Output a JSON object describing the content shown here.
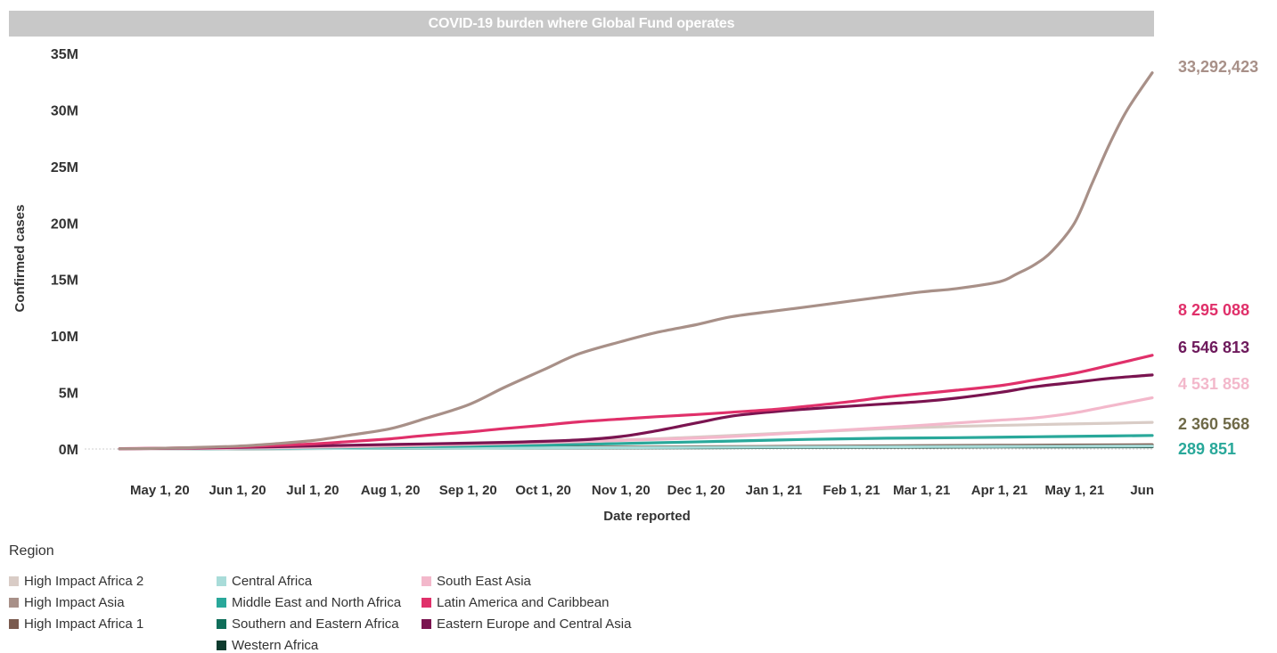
{
  "chart_data": {
    "type": "line",
    "title": "COVID-19 burden where Global Fund operates",
    "xlabel": "Date reported",
    "ylabel": "Confirmed cases",
    "x_range": [
      "2020-04-01",
      "2021-06-01"
    ],
    "ylim": [
      0,
      35000000
    ],
    "yticks": [
      {
        "value": 0,
        "label": "0M"
      },
      {
        "value": 5000000,
        "label": "5M"
      },
      {
        "value": 10000000,
        "label": "10M"
      },
      {
        "value": 15000000,
        "label": "15M"
      },
      {
        "value": 20000000,
        "label": "20M"
      },
      {
        "value": 25000000,
        "label": "25M"
      },
      {
        "value": 30000000,
        "label": "30M"
      },
      {
        "value": 35000000,
        "label": "35M"
      }
    ],
    "xticks": [
      {
        "date": "2020-05-01",
        "label": "May 1, 20"
      },
      {
        "date": "2020-06-01",
        "label": "Jun 1, 20"
      },
      {
        "date": "2020-07-01",
        "label": "Jul 1, 20"
      },
      {
        "date": "2020-08-01",
        "label": "Aug 1, 20"
      },
      {
        "date": "2020-09-01",
        "label": "Sep 1, 20"
      },
      {
        "date": "2020-10-01",
        "label": "Oct 1, 20"
      },
      {
        "date": "2020-11-01",
        "label": "Nov 1, 20"
      },
      {
        "date": "2020-12-01",
        "label": "Dec 1, 20"
      },
      {
        "date": "2021-01-01",
        "label": "Jan 1, 21"
      },
      {
        "date": "2021-02-01",
        "label": "Feb 1, 21"
      },
      {
        "date": "2021-03-01",
        "label": "Mar 1, 21"
      },
      {
        "date": "2021-04-01",
        "label": "Apr 1, 21"
      },
      {
        "date": "2021-05-01",
        "label": "May 1, 21"
      },
      {
        "date": "2021-06-01",
        "label": "Jun"
      }
    ],
    "grid": false,
    "legend_position": "bottom-left",
    "legend_title": "Region",
    "series": [
      {
        "name": "Western Africa",
        "color": "#0e3b2e",
        "dates": [
          "2020-04-15",
          "2020-06-01",
          "2020-08-01",
          "2020-10-01",
          "2020-12-01",
          "2021-02-01",
          "2021-04-01",
          "2021-06-01"
        ],
        "values": [
          5000,
          20000,
          60000,
          90000,
          110000,
          150000,
          180000,
          200000
        ]
      },
      {
        "name": "Southern and Eastern Africa",
        "color": "#0f6e5a",
        "dates": [
          "2020-04-15",
          "2020-06-01",
          "2020-08-01",
          "2020-10-01",
          "2020-12-01",
          "2021-02-01",
          "2021-04-01",
          "2021-06-01"
        ],
        "values": [
          5000,
          20000,
          70000,
          120000,
          160000,
          220000,
          260000,
          289851
        ]
      },
      {
        "name": "High Impact Africa 1",
        "color": "#7a5a4e",
        "dates": [
          "2020-04-15",
          "2020-06-01",
          "2020-08-01",
          "2020-10-01",
          "2020-12-01",
          "2021-02-01",
          "2021-04-01",
          "2021-06-01"
        ],
        "values": [
          5000,
          30000,
          100000,
          160000,
          200000,
          260000,
          320000,
          380000
        ]
      },
      {
        "name": "Central Africa",
        "color": "#a9dcd9",
        "dates": [
          "2020-04-15",
          "2020-06-01",
          "2020-08-01",
          "2020-10-01",
          "2020-12-01",
          "2021-02-01",
          "2021-04-01",
          "2021-06-01"
        ],
        "values": [
          5000,
          20000,
          60000,
          100000,
          140000,
          190000,
          230000,
          260000
        ]
      },
      {
        "name": "Middle East and North Africa",
        "color": "#29a89a",
        "dates": [
          "2020-04-15",
          "2020-05-15",
          "2020-06-15",
          "2020-07-15",
          "2020-08-15",
          "2020-09-15",
          "2020-10-15",
          "2020-11-15",
          "2020-12-15",
          "2021-01-15",
          "2021-02-15",
          "2021-03-15",
          "2021-04-15",
          "2021-05-15",
          "2021-06-01"
        ],
        "values": [
          10000,
          30000,
          80000,
          150000,
          220000,
          300000,
          400000,
          550000,
          700000,
          850000,
          950000,
          1000000,
          1080000,
          1150000,
          1200000
        ]
      },
      {
        "name": "High Impact Africa 2",
        "color": "#d9ccc6",
        "dates": [
          "2020-04-15",
          "2020-05-15",
          "2020-06-15",
          "2020-07-15",
          "2020-08-15",
          "2020-09-15",
          "2020-10-15",
          "2020-11-15",
          "2020-12-15",
          "2021-01-15",
          "2021-02-15",
          "2021-03-15",
          "2021-04-15",
          "2021-05-15",
          "2021-06-01"
        ],
        "values": [
          10000,
          40000,
          120000,
          250000,
          400000,
          550000,
          700000,
          900000,
          1200000,
          1500000,
          1800000,
          2000000,
          2150000,
          2280000,
          2360568
        ]
      },
      {
        "name": "South East Asia",
        "color": "#f3b8cb",
        "dates": [
          "2020-04-15",
          "2020-05-15",
          "2020-06-15",
          "2020-07-15",
          "2020-08-15",
          "2020-09-15",
          "2020-10-15",
          "2020-11-15",
          "2020-12-15",
          "2021-01-15",
          "2021-02-15",
          "2021-03-15",
          "2021-04-01",
          "2021-04-15",
          "2021-05-01",
          "2021-05-15",
          "2021-06-01"
        ],
        "values": [
          10000,
          40000,
          100000,
          200000,
          330000,
          480000,
          650000,
          850000,
          1100000,
          1500000,
          1900000,
          2300000,
          2550000,
          2750000,
          3200000,
          3800000,
          4531858
        ]
      },
      {
        "name": "Eastern Europe and Central Asia",
        "color": "#7a1450",
        "dates": [
          "2020-04-15",
          "2020-05-15",
          "2020-06-15",
          "2020-07-15",
          "2020-08-15",
          "2020-09-15",
          "2020-10-15",
          "2020-11-01",
          "2020-11-15",
          "2020-12-01",
          "2020-12-15",
          "2021-01-01",
          "2021-01-15",
          "2021-02-01",
          "2021-02-15",
          "2021-03-01",
          "2021-03-15",
          "2021-04-01",
          "2021-04-15",
          "2021-05-01",
          "2021-05-15",
          "2021-06-01"
        ],
        "values": [
          20000,
          80000,
          200000,
          330000,
          450000,
          580000,
          800000,
          1100000,
          1600000,
          2300000,
          2900000,
          3300000,
          3550000,
          3800000,
          4000000,
          4200000,
          4500000,
          5000000,
          5500000,
          5900000,
          6250000,
          6546813
        ]
      },
      {
        "name": "Latin America and Caribbean",
        "color": "#e0306a",
        "dates": [
          "2020-04-15",
          "2020-05-01",
          "2020-05-15",
          "2020-06-01",
          "2020-06-15",
          "2020-07-01",
          "2020-07-15",
          "2020-08-01",
          "2020-08-15",
          "2020-09-01",
          "2020-09-15",
          "2020-10-01",
          "2020-10-15",
          "2020-11-01",
          "2020-11-15",
          "2020-12-01",
          "2020-12-15",
          "2021-01-01",
          "2021-01-15",
          "2021-02-01",
          "2021-02-15",
          "2021-03-01",
          "2021-03-15",
          "2021-04-01",
          "2021-04-15",
          "2021-05-01",
          "2021-05-15",
          "2021-06-01"
        ],
        "values": [
          30000,
          60000,
          120000,
          200000,
          300000,
          450000,
          650000,
          900000,
          1200000,
          1500000,
          1800000,
          2100000,
          2400000,
          2650000,
          2850000,
          3050000,
          3250000,
          3500000,
          3800000,
          4200000,
          4600000,
          4900000,
          5200000,
          5600000,
          6100000,
          6700000,
          7400000,
          8295088
        ]
      },
      {
        "name": "High Impact Asia",
        "color": "#a89088",
        "dates": [
          "2020-04-15",
          "2020-05-01",
          "2020-05-15",
          "2020-06-01",
          "2020-06-15",
          "2020-07-01",
          "2020-07-15",
          "2020-08-01",
          "2020-08-15",
          "2020-09-01",
          "2020-09-15",
          "2020-10-01",
          "2020-10-15",
          "2020-11-01",
          "2020-11-15",
          "2020-12-01",
          "2020-12-15",
          "2021-01-01",
          "2021-01-15",
          "2021-02-01",
          "2021-02-15",
          "2021-03-01",
          "2021-03-15",
          "2021-04-01",
          "2021-04-08",
          "2021-04-15",
          "2021-04-22",
          "2021-05-01",
          "2021-05-08",
          "2021-05-15",
          "2021-05-22",
          "2021-06-01"
        ],
        "values": [
          20000,
          60000,
          130000,
          250000,
          450000,
          750000,
          1200000,
          1800000,
          2700000,
          3900000,
          5400000,
          7000000,
          8400000,
          9500000,
          10300000,
          11000000,
          11700000,
          12200000,
          12600000,
          13100000,
          13500000,
          13900000,
          14200000,
          14800000,
          15500000,
          16300000,
          17500000,
          20000000,
          23500000,
          27000000,
          30000000,
          33292423
        ]
      }
    ],
    "end_labels": [
      {
        "series": "High Impact Asia",
        "label": "33,292,423",
        "color": "#a89088"
      },
      {
        "series": "Latin America and Caribbean",
        "label": "8 295 088",
        "color": "#e0306a"
      },
      {
        "series": "Eastern Europe and Central Asia",
        "label": "6 546 813",
        "color": "#6e1a5c"
      },
      {
        "series": "South East Asia",
        "label": "4 531 858",
        "color": "#f3b8cb"
      },
      {
        "series": "High Impact Africa 2",
        "label": "2 360 568",
        "color": "#6f6a48"
      },
      {
        "series": "Southern and Eastern Africa",
        "label": "289 851",
        "color": "#29a89a"
      }
    ]
  },
  "legend": {
    "title": "Region",
    "columns": [
      [
        {
          "label": "High Impact Africa 2",
          "color": "#d9ccc6"
        },
        {
          "label": "High Impact Asia",
          "color": "#a89088"
        },
        {
          "label": "High Impact Africa 1",
          "color": "#7a5a4e"
        }
      ],
      [
        {
          "label": "Central Africa",
          "color": "#a9dcd9"
        },
        {
          "label": "Middle East and North Africa",
          "color": "#29a89a"
        },
        {
          "label": "Southern and Eastern Africa",
          "color": "#0f6e5a"
        },
        {
          "label": "Western Africa",
          "color": "#0e3b2e"
        }
      ],
      [
        {
          "label": "South East Asia",
          "color": "#f3b8cb"
        },
        {
          "label": "Latin America and Caribbean",
          "color": "#e0306a"
        },
        {
          "label": "Eastern Europe and Central Asia",
          "color": "#7a1450"
        }
      ]
    ]
  }
}
